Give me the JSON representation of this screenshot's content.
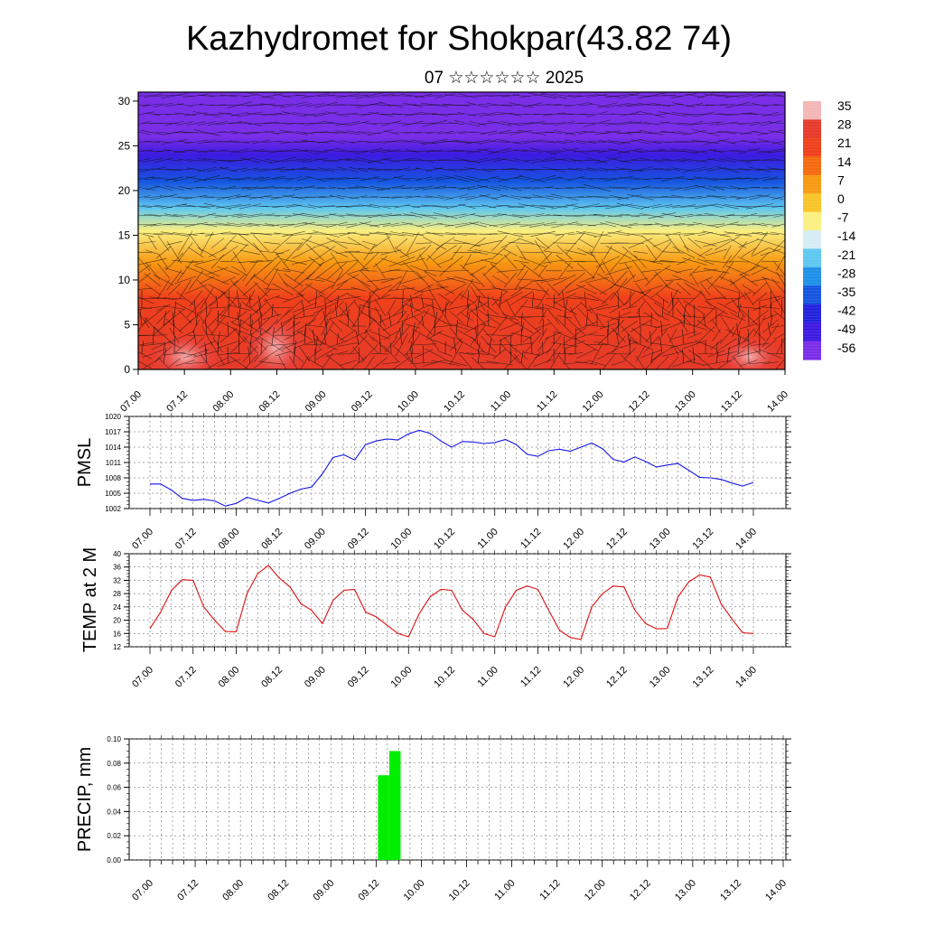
{
  "header": {
    "title": "Kazhydromet for Shokpar(43.82 74)",
    "subtitle": "07 ☆☆☆☆☆☆ 2025"
  },
  "x_ticks": [
    "07.00",
    "07.12",
    "08.00",
    "08.12",
    "09.00",
    "09.12",
    "10.00",
    "10.12",
    "11.00",
    "11.12",
    "12.00",
    "12.12",
    "13.00",
    "13.12",
    "14.00"
  ],
  "chart_data": [
    {
      "type": "heatmap",
      "ylim": [
        0,
        31
      ],
      "y_ticks": [
        0,
        5,
        10,
        15,
        20,
        25,
        30
      ],
      "colorbar": {
        "labels": [
          "35",
          "28",
          "21",
          "14",
          "7",
          "0",
          "-7",
          "-14",
          "-21",
          "-28",
          "-35",
          "-42",
          "-49",
          "-56"
        ],
        "colors": [
          "#f4b6b6",
          "#e63a2a",
          "#f0401b",
          "#f56a10",
          "#f79a12",
          "#f8c428",
          "#faf080",
          "#d6ecf4",
          "#5fc8f0",
          "#1e90e8",
          "#1555e0",
          "#2222dd",
          "#3d1ae0",
          "#7a2ee8"
        ]
      },
      "temperature_by_height": [
        {
          "h": 0,
          "t": 30
        },
        {
          "h": 8,
          "t": 18
        },
        {
          "h": 12,
          "t": 5
        },
        {
          "h": 15.5,
          "t": -8
        },
        {
          "h": 18,
          "t": -22
        },
        {
          "h": 21,
          "t": -38
        },
        {
          "h": 24,
          "t": -50
        },
        {
          "h": 26,
          "t": -54
        },
        {
          "h": 31,
          "t": -60
        }
      ]
    },
    {
      "type": "line",
      "ylabel": "PMSL",
      "ylim": [
        1002,
        1020
      ],
      "y_ticks": [
        1002,
        1005,
        1008,
        1011,
        1014,
        1017,
        1020
      ],
      "color": "#1515e8",
      "x_start": 0,
      "x_step": 3,
      "values": [
        1006.8,
        1006.8,
        1005.6,
        1004,
        1003.6,
        1003.8,
        1003.5,
        1002.5,
        1003,
        1004.2,
        1003.6,
        1003.1,
        1004,
        1005,
        1005.8,
        1006.2,
        1008.8,
        1012,
        1012.5,
        1011.5,
        1014.5,
        1015.2,
        1015.6,
        1015.4,
        1016.6,
        1017.3,
        1016.7,
        1015.2,
        1014,
        1015.1,
        1015,
        1014.7,
        1014.9,
        1015.5,
        1014.5,
        1012.6,
        1012.2,
        1013.3,
        1013.6,
        1013.2,
        1014,
        1014.8,
        1013.7,
        1011.6,
        1011.1,
        1012.1,
        1011.2,
        1010.1,
        1010.5,
        1010.8,
        1009.5,
        1008.1,
        1008,
        1007.7,
        1007,
        1006.4,
        1007.1
      ]
    },
    {
      "type": "line",
      "ylabel": "TEMP at 2 M",
      "ylim": [
        12,
        40
      ],
      "y_ticks": [
        12,
        16,
        20,
        24,
        28,
        32,
        36,
        40
      ],
      "color": "#dd1010",
      "x_start": 0,
      "x_step": 3,
      "values": [
        17.5,
        22.5,
        29,
        32.2,
        32,
        24,
        20,
        16.6,
        16.5,
        28,
        34,
        36.5,
        32.7,
        30,
        25,
        23,
        19,
        26,
        29,
        29.3,
        22.5,
        21,
        18.5,
        16,
        15,
        22,
        27,
        29.3,
        29,
        23,
        20.2,
        16,
        15,
        24,
        29,
        30.3,
        29.3,
        23,
        17,
        14.8,
        14.2,
        24,
        28,
        30.3,
        30,
        23,
        19,
        17.4,
        17.5,
        27,
        31.5,
        33.6,
        33,
        25,
        20.4,
        16.2,
        16
      ]
    },
    {
      "type": "bar",
      "ylabel": "PRECIP, mm",
      "ylim": [
        0,
        0.1
      ],
      "y_ticks": [
        "0.00",
        "0.02",
        "0.04",
        "0.06",
        "0.08",
        "0.10"
      ],
      "color": "#00ee00",
      "bars": [
        {
          "x": 62,
          "value": 0.07
        },
        {
          "x": 65,
          "value": 0.09
        }
      ]
    }
  ]
}
